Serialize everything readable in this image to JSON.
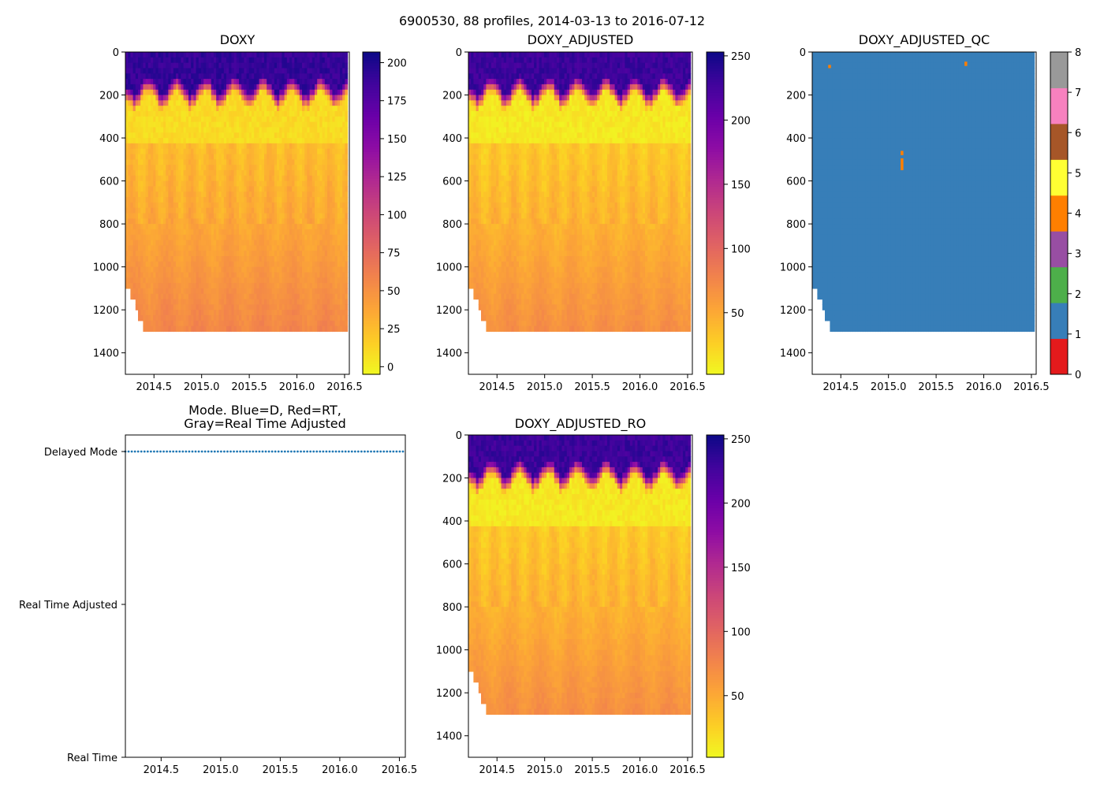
{
  "figure_title": "6900530, 88 profiles, 2014-03-13 to 2016-07-12",
  "colors": {
    "plasma_stops": [
      "#f0f921",
      "#fcce25",
      "#fca636",
      "#f2844b",
      "#e16462",
      "#cc4778",
      "#b12a90",
      "#8f0da4",
      "#6a00a8",
      "#41049d",
      "#0d0887"
    ],
    "qc_colors": [
      "#e41a1c",
      "#377eb8",
      "#4daf4a",
      "#984ea3",
      "#ff7f00",
      "#ffff33",
      "#a65628",
      "#f781bf",
      "#999999"
    ],
    "mode_dots": "#1f77b4",
    "axis": "#000000"
  },
  "chart_data": [
    {
      "id": "doxy",
      "type": "heatmap",
      "title": "DOXY",
      "x_range": [
        2014.2,
        2016.55
      ],
      "y_range": [
        1500,
        0
      ],
      "x_ticks": [
        "2014.5",
        "2015.0",
        "2015.5",
        "2016.0",
        "2016.5"
      ],
      "x_tick_values": [
        2014.5,
        2015.0,
        2015.5,
        2016.0,
        2016.5
      ],
      "y_ticks": [
        "0",
        "200",
        "400",
        "600",
        "800",
        "1000",
        "1200",
        "1400"
      ],
      "y_tick_values": [
        0,
        200,
        400,
        600,
        800,
        1000,
        1200,
        1400
      ],
      "colorbar": {
        "min": -5,
        "max": 207,
        "ticks": [
          "0",
          "25",
          "50",
          "75",
          "100",
          "125",
          "150",
          "175",
          "200"
        ],
        "tick_values": [
          0,
          25,
          50,
          75,
          100,
          125,
          150,
          175,
          200
        ]
      },
      "value_scale": 0.83,
      "max_depth": 1300
    },
    {
      "id": "doxy_adjusted",
      "type": "heatmap",
      "title": "DOXY_ADJUSTED",
      "x_range": [
        2014.2,
        2016.55
      ],
      "y_range": [
        1500,
        0
      ],
      "x_ticks": [
        "2014.5",
        "2015.0",
        "2015.5",
        "2016.0",
        "2016.5"
      ],
      "x_tick_values": [
        2014.5,
        2015.0,
        2015.5,
        2016.0,
        2016.5
      ],
      "y_ticks": [
        "0",
        "200",
        "400",
        "600",
        "800",
        "1000",
        "1200",
        "1400"
      ],
      "y_tick_values": [
        0,
        200,
        400,
        600,
        800,
        1000,
        1200,
        1400
      ],
      "colorbar": {
        "min": 2,
        "max": 253,
        "ticks": [
          "50",
          "100",
          "150",
          "200",
          "250"
        ],
        "tick_values": [
          50,
          100,
          150,
          200,
          250
        ]
      },
      "value_scale": 1.0,
      "max_depth": 1300
    },
    {
      "id": "doxy_adjusted_qc",
      "type": "heatmap",
      "title": "DOXY_ADJUSTED_QC",
      "x_range": [
        2014.2,
        2016.55
      ],
      "y_range": [
        1500,
        0
      ],
      "x_ticks": [
        "2014.5",
        "2015.0",
        "2015.5",
        "2016.0",
        "2016.5"
      ],
      "x_tick_values": [
        2014.5,
        2015.0,
        2015.5,
        2016.0,
        2016.5
      ],
      "y_ticks": [
        "0",
        "200",
        "400",
        "600",
        "800",
        "1000",
        "1200",
        "1400"
      ],
      "y_tick_values": [
        0,
        200,
        400,
        600,
        800,
        1000,
        1200,
        1400
      ],
      "colorbar": {
        "min": 0,
        "max": 8,
        "ticks": [
          "0",
          "1",
          "2",
          "3",
          "4",
          "5",
          "6",
          "7",
          "8"
        ],
        "tick_values": [
          0,
          1,
          2,
          3,
          4,
          5,
          6,
          7,
          8
        ],
        "discrete": true
      },
      "qc_value": 1,
      "qc_flags": [
        {
          "date": 2014.38,
          "depth_top": 60,
          "depth_bottom": 75,
          "flag": 4
        },
        {
          "date": 2015.14,
          "depth_top": 460,
          "depth_bottom": 480,
          "flag": 4
        },
        {
          "date": 2015.14,
          "depth_top": 495,
          "depth_bottom": 550,
          "flag": 4
        },
        {
          "date": 2015.81,
          "depth_top": 45,
          "depth_bottom": 65,
          "flag": 4
        }
      ],
      "max_depth": 1300
    },
    {
      "id": "mode",
      "type": "scatter",
      "title_line1": "Mode. Blue=D, Red=RT,",
      "title_line2": "Gray=Real Time Adjusted",
      "x_range": [
        2014.2,
        2016.55
      ],
      "x_ticks": [
        "2014.5",
        "2015.0",
        "2015.5",
        "2016.0",
        "2016.5"
      ],
      "x_tick_values": [
        2014.5,
        2015.0,
        2015.5,
        2016.0,
        2016.5
      ],
      "y_categories": [
        "Delayed Mode",
        "Real Time Adjusted",
        "Real Time"
      ],
      "series": [
        {
          "name": "Delayed Mode",
          "category": "Delayed Mode",
          "date_start": 2014.2,
          "date_end": 2016.53,
          "count": 88
        }
      ]
    },
    {
      "id": "doxy_adjusted_ro",
      "type": "heatmap",
      "title": "DOXY_ADJUSTED_RO",
      "x_range": [
        2014.2,
        2016.55
      ],
      "y_range": [
        1500,
        0
      ],
      "x_ticks": [
        "2014.5",
        "2015.0",
        "2015.5",
        "2016.0",
        "2016.5"
      ],
      "x_tick_values": [
        2014.5,
        2015.0,
        2015.5,
        2016.0,
        2016.5
      ],
      "y_ticks": [
        "0",
        "200",
        "400",
        "600",
        "800",
        "1000",
        "1200",
        "1400"
      ],
      "y_tick_values": [
        0,
        200,
        400,
        600,
        800,
        1000,
        1200,
        1400
      ],
      "colorbar": {
        "min": 2,
        "max": 253,
        "ticks": [
          "50",
          "100",
          "150",
          "200",
          "250"
        ],
        "tick_values": [
          50,
          100,
          150,
          200,
          250
        ]
      },
      "value_scale": 1.0,
      "max_depth": 1300
    }
  ]
}
